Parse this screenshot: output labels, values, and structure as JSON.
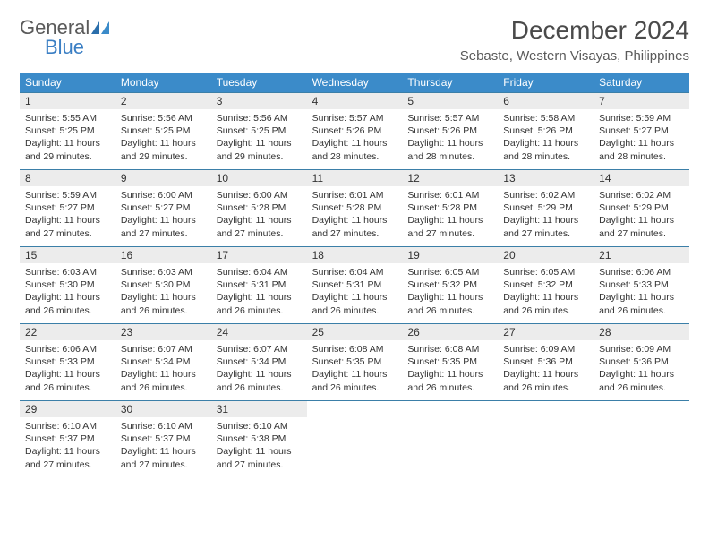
{
  "logo": {
    "general": "General",
    "blue": "Blue"
  },
  "title": "December 2024",
  "location": "Sebaste, Western Visayas, Philippines",
  "colors": {
    "header_bg": "#3b8bc9",
    "header_text": "#ffffff",
    "daynum_bg": "#ececec",
    "border": "#3b7fa8",
    "text": "#333333",
    "logo_gray": "#5a5a5a",
    "logo_blue": "#3b7fc4",
    "page_bg": "#ffffff"
  },
  "weekdays": [
    "Sunday",
    "Monday",
    "Tuesday",
    "Wednesday",
    "Thursday",
    "Friday",
    "Saturday"
  ],
  "days": [
    {
      "n": "1",
      "sr": "5:55 AM",
      "ss": "5:25 PM",
      "dl": "11 hours and 29 minutes."
    },
    {
      "n": "2",
      "sr": "5:56 AM",
      "ss": "5:25 PM",
      "dl": "11 hours and 29 minutes."
    },
    {
      "n": "3",
      "sr": "5:56 AM",
      "ss": "5:25 PM",
      "dl": "11 hours and 29 minutes."
    },
    {
      "n": "4",
      "sr": "5:57 AM",
      "ss": "5:26 PM",
      "dl": "11 hours and 28 minutes."
    },
    {
      "n": "5",
      "sr": "5:57 AM",
      "ss": "5:26 PM",
      "dl": "11 hours and 28 minutes."
    },
    {
      "n": "6",
      "sr": "5:58 AM",
      "ss": "5:26 PM",
      "dl": "11 hours and 28 minutes."
    },
    {
      "n": "7",
      "sr": "5:59 AM",
      "ss": "5:27 PM",
      "dl": "11 hours and 28 minutes."
    },
    {
      "n": "8",
      "sr": "5:59 AM",
      "ss": "5:27 PM",
      "dl": "11 hours and 27 minutes."
    },
    {
      "n": "9",
      "sr": "6:00 AM",
      "ss": "5:27 PM",
      "dl": "11 hours and 27 minutes."
    },
    {
      "n": "10",
      "sr": "6:00 AM",
      "ss": "5:28 PM",
      "dl": "11 hours and 27 minutes."
    },
    {
      "n": "11",
      "sr": "6:01 AM",
      "ss": "5:28 PM",
      "dl": "11 hours and 27 minutes."
    },
    {
      "n": "12",
      "sr": "6:01 AM",
      "ss": "5:28 PM",
      "dl": "11 hours and 27 minutes."
    },
    {
      "n": "13",
      "sr": "6:02 AM",
      "ss": "5:29 PM",
      "dl": "11 hours and 27 minutes."
    },
    {
      "n": "14",
      "sr": "6:02 AM",
      "ss": "5:29 PM",
      "dl": "11 hours and 27 minutes."
    },
    {
      "n": "15",
      "sr": "6:03 AM",
      "ss": "5:30 PM",
      "dl": "11 hours and 26 minutes."
    },
    {
      "n": "16",
      "sr": "6:03 AM",
      "ss": "5:30 PM",
      "dl": "11 hours and 26 minutes."
    },
    {
      "n": "17",
      "sr": "6:04 AM",
      "ss": "5:31 PM",
      "dl": "11 hours and 26 minutes."
    },
    {
      "n": "18",
      "sr": "6:04 AM",
      "ss": "5:31 PM",
      "dl": "11 hours and 26 minutes."
    },
    {
      "n": "19",
      "sr": "6:05 AM",
      "ss": "5:32 PM",
      "dl": "11 hours and 26 minutes."
    },
    {
      "n": "20",
      "sr": "6:05 AM",
      "ss": "5:32 PM",
      "dl": "11 hours and 26 minutes."
    },
    {
      "n": "21",
      "sr": "6:06 AM",
      "ss": "5:33 PM",
      "dl": "11 hours and 26 minutes."
    },
    {
      "n": "22",
      "sr": "6:06 AM",
      "ss": "5:33 PM",
      "dl": "11 hours and 26 minutes."
    },
    {
      "n": "23",
      "sr": "6:07 AM",
      "ss": "5:34 PM",
      "dl": "11 hours and 26 minutes."
    },
    {
      "n": "24",
      "sr": "6:07 AM",
      "ss": "5:34 PM",
      "dl": "11 hours and 26 minutes."
    },
    {
      "n": "25",
      "sr": "6:08 AM",
      "ss": "5:35 PM",
      "dl": "11 hours and 26 minutes."
    },
    {
      "n": "26",
      "sr": "6:08 AM",
      "ss": "5:35 PM",
      "dl": "11 hours and 26 minutes."
    },
    {
      "n": "27",
      "sr": "6:09 AM",
      "ss": "5:36 PM",
      "dl": "11 hours and 26 minutes."
    },
    {
      "n": "28",
      "sr": "6:09 AM",
      "ss": "5:36 PM",
      "dl": "11 hours and 26 minutes."
    },
    {
      "n": "29",
      "sr": "6:10 AM",
      "ss": "5:37 PM",
      "dl": "11 hours and 27 minutes."
    },
    {
      "n": "30",
      "sr": "6:10 AM",
      "ss": "5:37 PM",
      "dl": "11 hours and 27 minutes."
    },
    {
      "n": "31",
      "sr": "6:10 AM",
      "ss": "5:38 PM",
      "dl": "11 hours and 27 minutes."
    }
  ],
  "labels": {
    "sunrise": "Sunrise:",
    "sunset": "Sunset:",
    "daylight": "Daylight:"
  }
}
